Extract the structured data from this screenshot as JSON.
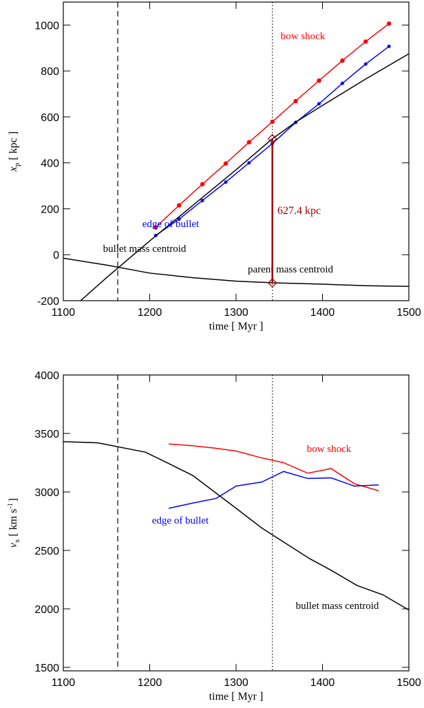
{
  "chart_data": [
    {
      "type": "line",
      "xlabel": "time [ Myr ]",
      "ylabel": {
        "symbol": "x",
        "subscript": "p",
        "unit": "[ kpc ]"
      },
      "xlim": [
        1100,
        1500
      ],
      "xticks": [
        1100,
        1200,
        1300,
        1400,
        1500
      ],
      "ylim": [
        -200,
        1100
      ],
      "yticks": [
        -200,
        0,
        200,
        400,
        600,
        800,
        1000
      ],
      "vlines": [
        {
          "x": 1163,
          "style": "dashed"
        },
        {
          "x": 1342,
          "style": "dotted"
        }
      ],
      "measure": {
        "x": 1342,
        "y": [
          -122.4,
          505
        ],
        "label": "627.4 kpc",
        "color": "#a00000"
      },
      "series": [
        {
          "name": "bow shock",
          "color": "#ff0000",
          "markers": true,
          "x": [
            1207,
            1234,
            1261,
            1288,
            1315,
            1342,
            1369,
            1396,
            1423,
            1450,
            1477
          ],
          "values": [
            119,
            215,
            307,
            397,
            490,
            579,
            669,
            758,
            845,
            928,
            1006
          ]
        },
        {
          "name": "edge of bullet",
          "color": "#0000ff",
          "markers": true,
          "x": [
            1207,
            1234,
            1261,
            1288,
            1315,
            1342,
            1369,
            1396,
            1423,
            1450,
            1477
          ],
          "values": [
            84,
            155,
            236,
            316,
            400,
            484,
            576,
            657,
            746,
            830,
            907
          ]
        },
        {
          "name": "bullet mass centroid",
          "color": "#000000",
          "markers": false,
          "x": [
            1120,
            1150,
            1200,
            1250,
            1300,
            1342,
            1370,
            1400,
            1450,
            1500
          ],
          "values": [
            -200,
            -100,
            60,
            215,
            370,
            505,
            580,
            650,
            765,
            875
          ]
        },
        {
          "name": "parent mass centroid",
          "color": "#000000",
          "markers": false,
          "x": [
            1100,
            1150,
            1200,
            1250,
            1300,
            1342,
            1400,
            1450,
            1500
          ],
          "values": [
            -15,
            -45,
            -80,
            -100,
            -115,
            -122,
            -128,
            -135,
            -138
          ]
        }
      ]
    },
    {
      "type": "line",
      "xlabel": "time [ Myr ]",
      "ylabel": {
        "symbol": "v",
        "subscript": "x",
        "unit": "[ km s",
        "superscript": "-1",
        "unit_end": "]"
      },
      "xlim": [
        1100,
        1500
      ],
      "xticks": [
        1100,
        1200,
        1300,
        1400,
        1500
      ],
      "ylim": [
        1470,
        4000
      ],
      "yticks": [
        1500,
        2000,
        2500,
        3000,
        3500,
        4000
      ],
      "vlines": [
        {
          "x": 1163,
          "style": "dashed"
        },
        {
          "x": 1342,
          "style": "dotted"
        }
      ],
      "series": [
        {
          "name": "bow shock",
          "color": "#ff0000",
          "markers": false,
          "x": [
            1222,
            1250,
            1275,
            1300,
            1330,
            1355,
            1383,
            1410,
            1437,
            1465
          ],
          "values": [
            3410,
            3395,
            3375,
            3350,
            3290,
            3250,
            3160,
            3200,
            3070,
            3010
          ]
        },
        {
          "name": "edge of bullet",
          "color": "#0000ff",
          "markers": false,
          "x": [
            1222,
            1250,
            1277,
            1300,
            1330,
            1355,
            1383,
            1410,
            1437,
            1465
          ],
          "values": [
            2860,
            2905,
            2945,
            3050,
            3085,
            3175,
            3115,
            3120,
            3050,
            3060
          ]
        },
        {
          "name": "bullet mass centroid",
          "color": "#000000",
          "markers": false,
          "x": [
            1100,
            1140,
            1195,
            1220,
            1250,
            1300,
            1330,
            1385,
            1410,
            1440,
            1470,
            1500
          ],
          "values": [
            3430,
            3420,
            3340,
            3250,
            3140,
            2860,
            2690,
            2430,
            2330,
            2200,
            2120,
            1990
          ]
        }
      ]
    }
  ]
}
